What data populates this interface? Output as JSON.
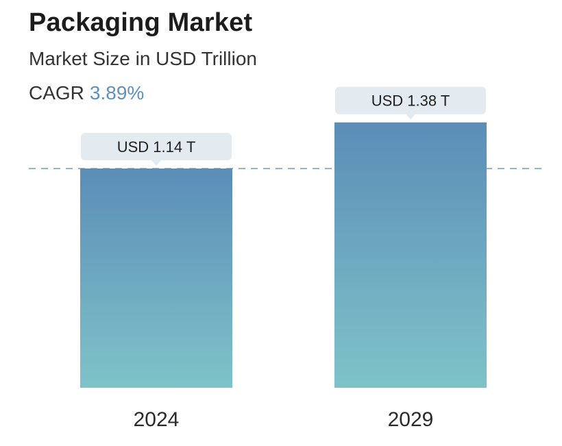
{
  "chart_data": {
    "type": "bar",
    "title": "Packaging Market",
    "subtitle": "Market Size in USD Trillion",
    "cagr_label": "CAGR",
    "cagr_value": "3.89%",
    "categories": [
      "2024",
      "2029"
    ],
    "values": [
      1.14,
      1.38
    ],
    "value_labels": [
      "USD 1.14 T",
      "USD 1.38 T"
    ],
    "reference_line_value": 1.14,
    "colors": {
      "bar_top": "#5b8db7",
      "bar_bottom": "#7ec3c8",
      "label_bg": "#e3ebf0",
      "reference_line": "#6b9cc4",
      "accent": "#5e8fbd"
    }
  }
}
